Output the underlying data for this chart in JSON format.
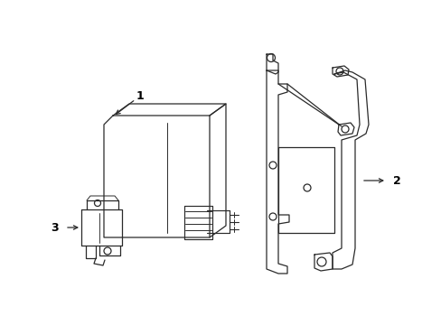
{
  "bg_color": "#ffffff",
  "line_color": "#2a2a2a",
  "line_width": 0.9,
  "labels": [
    "1",
    "2",
    "3"
  ]
}
